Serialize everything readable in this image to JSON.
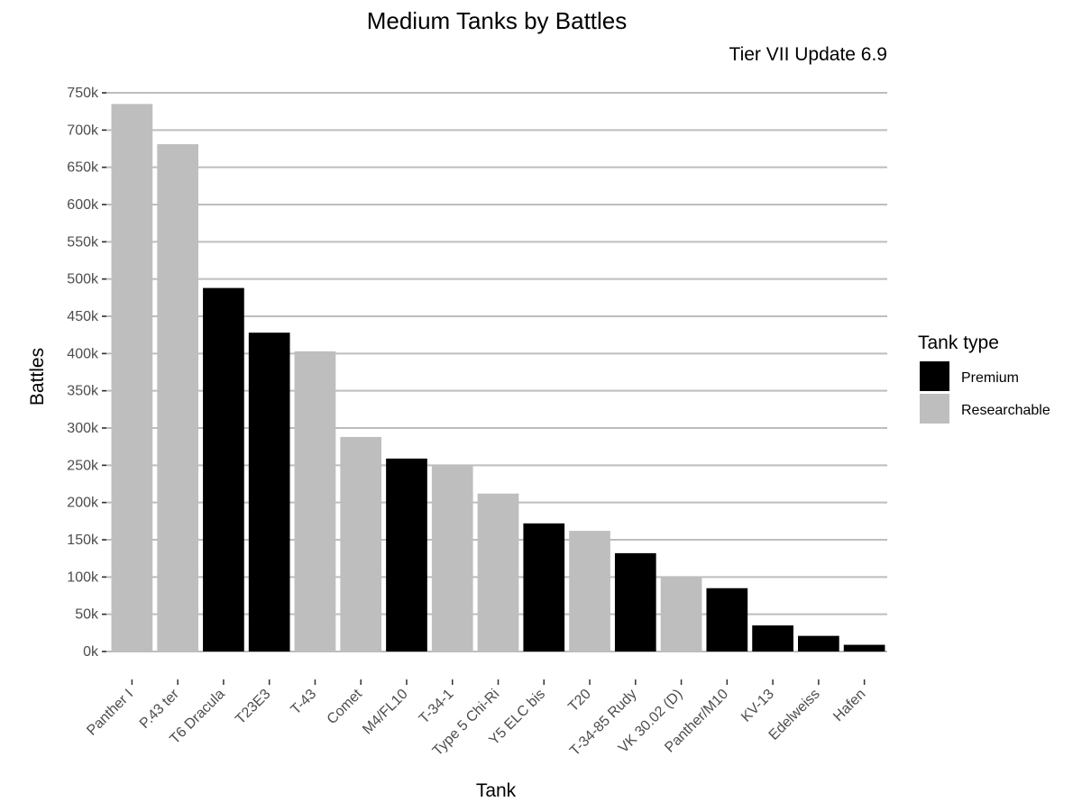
{
  "chart_data": {
    "type": "bar",
    "title": "Medium Tanks by Battles",
    "subtitle": "Tier VII Update 6.9",
    "xlabel": "Tank",
    "ylabel": "Battles",
    "ylim": [
      0,
      750000
    ],
    "yticks": [
      0,
      50000,
      100000,
      150000,
      200000,
      250000,
      300000,
      350000,
      400000,
      450000,
      500000,
      550000,
      600000,
      650000,
      700000,
      750000
    ],
    "ytick_labels": [
      "0k",
      "50k",
      "100k",
      "150k",
      "200k",
      "250k",
      "300k",
      "350k",
      "400k",
      "450k",
      "500k",
      "550k",
      "600k",
      "650k",
      "700k",
      "750k"
    ],
    "grid": true,
    "legend": {
      "title": "Tank type",
      "position": "right",
      "entries": [
        {
          "name": "Premium",
          "color": "#000000"
        },
        {
          "name": "Researchable",
          "color": "#bebebe"
        }
      ]
    },
    "categories": [
      "Panther I",
      "P.43 ter",
      "T6 Dracula",
      "T23E3",
      "T-43",
      "Comet",
      "M4/FL10",
      "T-34-1",
      "Type 5 Chi-Ri",
      "Y5 ELC bis",
      "T20",
      "T-34-85 Rudy",
      "VK 30.02 (D)",
      "Panther/M10",
      "KV-13",
      "Edelweiss",
      "Hafen"
    ],
    "values": [
      735000,
      681000,
      488000,
      428000,
      403000,
      288000,
      259000,
      250000,
      212000,
      172000,
      162000,
      132000,
      100000,
      85000,
      35000,
      21000,
      9000
    ],
    "types": [
      "Researchable",
      "Researchable",
      "Premium",
      "Premium",
      "Researchable",
      "Researchable",
      "Premium",
      "Researchable",
      "Researchable",
      "Premium",
      "Researchable",
      "Premium",
      "Researchable",
      "Premium",
      "Premium",
      "Premium",
      "Premium"
    ]
  }
}
